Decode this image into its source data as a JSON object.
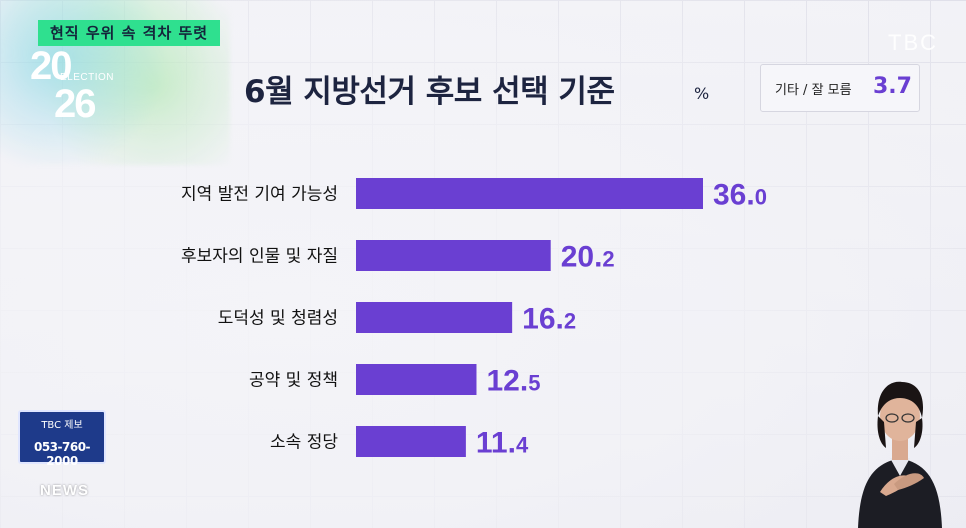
{
  "overlay": {
    "headline_tag": "현직 우위 속 격차 뚜렷",
    "logo": {
      "year_top": "20",
      "word": "ELECTION",
      "year_bottom": "26"
    },
    "channel_logo": "TBC",
    "tip_box": {
      "label": "TBC 제보",
      "phone": "053-760-2000"
    },
    "news_label": "NEWS"
  },
  "chart_data": {
    "type": "bar",
    "orientation": "horizontal",
    "title": "6월 지방선거 후보 선택 기준",
    "unit": "%",
    "categories": [
      "지역 발전 기여 가능성",
      "후보자의 인물 및 자질",
      "도덕성 및 청렴성",
      "공약 및 정책",
      "소속 정당"
    ],
    "values": [
      36.0,
      20.2,
      16.2,
      12.5,
      11.4
    ],
    "value_labels": [
      "36.0",
      "20.2",
      "16.2",
      "12.5",
      "11.4"
    ],
    "other": {
      "label": "기타 / 잘 모름",
      "value": "3.7"
    },
    "bar_color": "#6a3fd2",
    "label_color": "#6a3fd2"
  }
}
